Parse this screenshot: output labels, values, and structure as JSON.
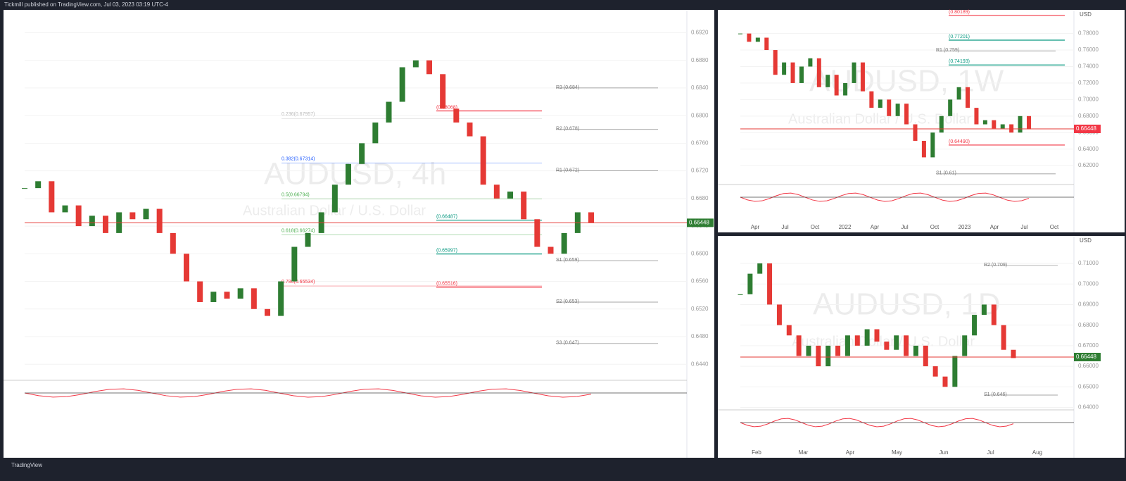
{
  "header": {
    "publisher": "Tickmill published on TradingView.com, Jul 03, 2023 03:19 UTC-4"
  },
  "footer": {
    "brand": "TradingView"
  },
  "panels": [
    {
      "symbol": "AUDUSD, 4h",
      "description": "Australian Dollar / U.S. Dollar",
      "last_price": {
        "value": 0.66448,
        "label": "0.66448"
      },
      "ylim": [
        0.6427,
        0.6949
      ],
      "yticks": [
        {
          "value": 0.644,
          "label": "0.6440"
        },
        {
          "value": 0.648,
          "label": "0.6480"
        },
        {
          "value": 0.652,
          "label": "0.6520"
        },
        {
          "value": 0.656,
          "label": "0.6560"
        },
        {
          "value": 0.66,
          "label": "0.6600"
        },
        {
          "value": 0.664,
          "label": "0.6640"
        },
        {
          "value": 0.668,
          "label": "0.6680"
        },
        {
          "value": 0.672,
          "label": "0.6720"
        },
        {
          "value": 0.676,
          "label": "0.6760"
        },
        {
          "value": 0.68,
          "label": "0.6800"
        },
        {
          "value": 0.684,
          "label": "0.6840"
        },
        {
          "value": 0.688,
          "label": "0.6880"
        },
        {
          "value": 0.692,
          "label": "0.6920"
        }
      ],
      "closes": [
        0.6695,
        0.6705,
        0.666,
        0.667,
        0.664,
        0.6655,
        0.663,
        0.666,
        0.665,
        0.6665,
        0.663,
        0.66,
        0.656,
        0.653,
        0.6545,
        0.6535,
        0.655,
        0.652,
        0.651,
        0.656,
        0.661,
        0.663,
        0.666,
        0.67,
        0.673,
        0.676,
        0.679,
        0.682,
        0.687,
        0.688,
        0.686,
        0.681,
        0.679,
        0.677,
        0.67,
        0.668,
        0.669,
        0.665,
        0.661,
        0.66,
        0.663,
        0.666,
        0.6645
      ],
      "pivots": [
        {
          "label": "R3 (0.684)",
          "value": 0.684
        },
        {
          "label": "R2 (0.678)",
          "value": 0.678
        },
        {
          "label": "R1 (0.672)",
          "value": 0.672
        },
        {
          "label": "S1 (0.659)",
          "value": 0.659
        },
        {
          "label": "S2 (0.653)",
          "value": 0.653
        },
        {
          "label": "S3 (0.647)",
          "value": 0.647
        }
      ],
      "fibs": [
        {
          "label": "0.236(0.67957)",
          "value": 0.67957,
          "color": "#bbbbbb"
        },
        {
          "label": "0.382(0.67314)",
          "value": 0.67314,
          "color": "#2962ff"
        },
        {
          "label": "0.5(0.66794)",
          "value": 0.66794,
          "color": "#4caf50"
        },
        {
          "label": "0.618(0.66274)",
          "value": 0.66274,
          "color": "#4caf50"
        },
        {
          "label": "0.786(0.65534)",
          "value": 0.65534,
          "color": "#f23645"
        }
      ],
      "zones": [
        {
          "label": "(0.68068)",
          "value": 0.68068,
          "color": "#f23645"
        },
        {
          "label": "(0.66487)",
          "value": 0.66487,
          "color": "#089981"
        },
        {
          "label": "(0.65997)",
          "value": 0.65997,
          "color": "#089981"
        },
        {
          "label": "(0.65516)",
          "value": 0.65516,
          "color": "#f23645"
        }
      ]
    },
    {
      "symbol": "AUDUSD, 1W",
      "description": "Australian Dollar / U.S. Dollar",
      "currency": "USD",
      "last_price": {
        "value": 0.66448,
        "label": "0.66448"
      },
      "ylim": [
        0.60049,
        0.80527
      ],
      "yticks": [
        {
          "value": 0.62,
          "label": "0.62000"
        },
        {
          "value": 0.64,
          "label": "0.64000"
        },
        {
          "value": 0.66,
          "label": "0.66000"
        },
        {
          "value": 0.68,
          "label": "0.68000"
        },
        {
          "value": 0.7,
          "label": "0.70000"
        },
        {
          "value": 0.72,
          "label": "0.72000"
        },
        {
          "value": 0.74,
          "label": "0.74000"
        },
        {
          "value": 0.76,
          "label": "0.76000"
        },
        {
          "value": 0.78,
          "label": "0.78000"
        }
      ],
      "xticks": [
        "Apr",
        "Jul",
        "Oct",
        "2022",
        "Apr",
        "Jul",
        "Oct",
        "2023",
        "Apr",
        "Jul",
        "Oct"
      ],
      "closes": [
        0.78,
        0.77,
        0.775,
        0.76,
        0.73,
        0.745,
        0.72,
        0.74,
        0.75,
        0.715,
        0.73,
        0.705,
        0.72,
        0.745,
        0.71,
        0.69,
        0.7,
        0.68,
        0.695,
        0.67,
        0.65,
        0.63,
        0.66,
        0.68,
        0.7,
        0.715,
        0.69,
        0.67,
        0.675,
        0.665,
        0.67,
        0.66,
        0.68,
        0.664
      ],
      "pivots": [
        {
          "label": "R1 (0.759)",
          "value": 0.759
        },
        {
          "label": "S1 (0.61)",
          "value": 0.61
        }
      ],
      "zones": [
        {
          "label": "(0.80189)",
          "value": 0.80189,
          "color": "#f23645"
        },
        {
          "label": "(0.77201)",
          "value": 0.77201,
          "color": "#089981"
        },
        {
          "label": "(0.74193)",
          "value": 0.74193,
          "color": "#089981"
        },
        {
          "label": "(0.64490)",
          "value": 0.6449,
          "color": "#f23645"
        }
      ]
    },
    {
      "symbol": "AUDUSD, 1D",
      "description": "Australian Dollar / U.S. Dollar",
      "currency": "USD",
      "last_price": {
        "value": 0.66448,
        "label": "0.66448"
      },
      "ylim": [
        0.64017,
        0.72165
      ],
      "yticks": [
        {
          "value": 0.64,
          "label": "0.64000"
        },
        {
          "value": 0.65,
          "label": "0.65000"
        },
        {
          "value": 0.66,
          "label": "0.66000"
        },
        {
          "value": 0.67,
          "label": "0.67000"
        },
        {
          "value": 0.68,
          "label": "0.68000"
        },
        {
          "value": 0.69,
          "label": "0.69000"
        },
        {
          "value": 0.7,
          "label": "0.70000"
        },
        {
          "value": 0.71,
          "label": "0.71000"
        }
      ],
      "xticks": [
        "Feb",
        "Mar",
        "Apr",
        "May",
        "Jun",
        "Jul",
        "Aug"
      ],
      "closes": [
        0.695,
        0.705,
        0.71,
        0.69,
        0.68,
        0.675,
        0.665,
        0.67,
        0.66,
        0.67,
        0.665,
        0.675,
        0.67,
        0.678,
        0.672,
        0.668,
        0.675,
        0.665,
        0.67,
        0.66,
        0.655,
        0.65,
        0.665,
        0.675,
        0.685,
        0.69,
        0.68,
        0.668,
        0.664
      ],
      "pivots": [
        {
          "label": "R2 (0.709)",
          "value": 0.709
        },
        {
          "label": "S1 (0.646)",
          "value": 0.646
        }
      ],
      "zones": []
    }
  ]
}
